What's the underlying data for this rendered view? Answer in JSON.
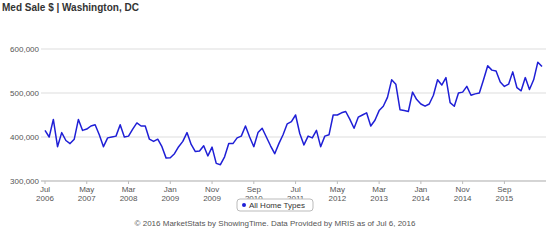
{
  "chart_data": {
    "type": "line",
    "title": "Med Sale $ | Washington, DC",
    "annotations": [
      "© 2016 MarketStats by ShowingTime. Data Provided by MRIS as of Jul 6, 2016"
    ],
    "categories": [
      "Jul 2006",
      null,
      null,
      null,
      null,
      null,
      null,
      null,
      null,
      null,
      "May 2007",
      null,
      null,
      null,
      null,
      null,
      null,
      null,
      null,
      null,
      "Mar 2008",
      null,
      null,
      null,
      null,
      null,
      null,
      null,
      null,
      null,
      "Jan 2009",
      null,
      null,
      null,
      null,
      null,
      null,
      null,
      null,
      null,
      "Nov 2009",
      null,
      null,
      null,
      null,
      null,
      null,
      null,
      null,
      null,
      "Sep 2010",
      null,
      null,
      null,
      null,
      null,
      null,
      null,
      null,
      null,
      "Jul 2011",
      null,
      null,
      null,
      null,
      null,
      null,
      null,
      null,
      null,
      "May 2012",
      null,
      null,
      null,
      null,
      null,
      null,
      null,
      null,
      null,
      "Mar 2013",
      null,
      null,
      null,
      null,
      null,
      null,
      null,
      null,
      null,
      "Jan 2014",
      null,
      null,
      null,
      null,
      null,
      null,
      null,
      null,
      null,
      "Nov 2014",
      null,
      null,
      null,
      null,
      null,
      null,
      null,
      null,
      null,
      "Sep 2015",
      null,
      null,
      null,
      null,
      null,
      null,
      null,
      null,
      null
    ],
    "series": [
      {
        "name": "All Home Types",
        "color": "#1f1fd6",
        "values": [
          415000,
          400000,
          440000,
          378000,
          410000,
          392000,
          385000,
          395000,
          440000,
          415000,
          418000,
          425000,
          428000,
          405000,
          378000,
          398000,
          400000,
          402000,
          428000,
          400000,
          402000,
          418000,
          432000,
          425000,
          425000,
          395000,
          390000,
          395000,
          378000,
          352000,
          353000,
          362000,
          378000,
          390000,
          410000,
          383000,
          367000,
          368000,
          380000,
          357000,
          377000,
          340000,
          337000,
          355000,
          385000,
          385000,
          398000,
          402000,
          425000,
          400000,
          378000,
          410000,
          420000,
          400000,
          380000,
          362000,
          385000,
          405000,
          430000,
          435000,
          450000,
          408000,
          382000,
          402000,
          398000,
          415000,
          378000,
          402000,
          405000,
          450000,
          450000,
          455000,
          458000,
          440000,
          420000,
          445000,
          450000,
          455000,
          425000,
          438000,
          460000,
          470000,
          490000,
          530000,
          520000,
          462000,
          460000,
          458000,
          502000,
          485000,
          475000,
          470000,
          475000,
          495000,
          530000,
          518000,
          535000,
          478000,
          470000,
          500000,
          502000,
          515000,
          495000,
          498000,
          500000,
          530000,
          562000,
          552000,
          550000,
          525000,
          515000,
          520000,
          548000,
          512000,
          505000,
          535000,
          508000,
          530000,
          570000,
          560000
        ]
      }
    ],
    "ylim": [
      300000,
      600000
    ],
    "yticks": [
      {
        "value": 300000,
        "label": "300,000"
      },
      {
        "value": 400000,
        "label": "400,000"
      },
      {
        "value": 500000,
        "label": "500,000"
      },
      {
        "value": 600000,
        "label": "600,000"
      }
    ],
    "grid": true,
    "legend": "bottom"
  }
}
